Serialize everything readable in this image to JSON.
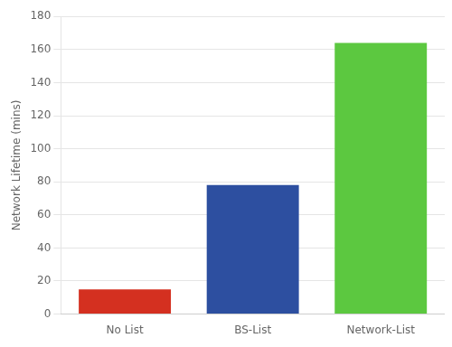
{
  "chart_data": {
    "type": "bar",
    "categories": [
      "No List",
      "BS-List",
      "Network-List"
    ],
    "values": [
      15,
      78,
      164
    ],
    "colors": [
      "#d43020",
      "#2d4fa0",
      "#5cc840"
    ],
    "ylabel": "Network Lifetime (mins)",
    "ylim": [
      0,
      180
    ],
    "yticks": [
      0,
      20,
      40,
      60,
      80,
      100,
      120,
      140,
      160,
      180
    ],
    "grid": true
  }
}
